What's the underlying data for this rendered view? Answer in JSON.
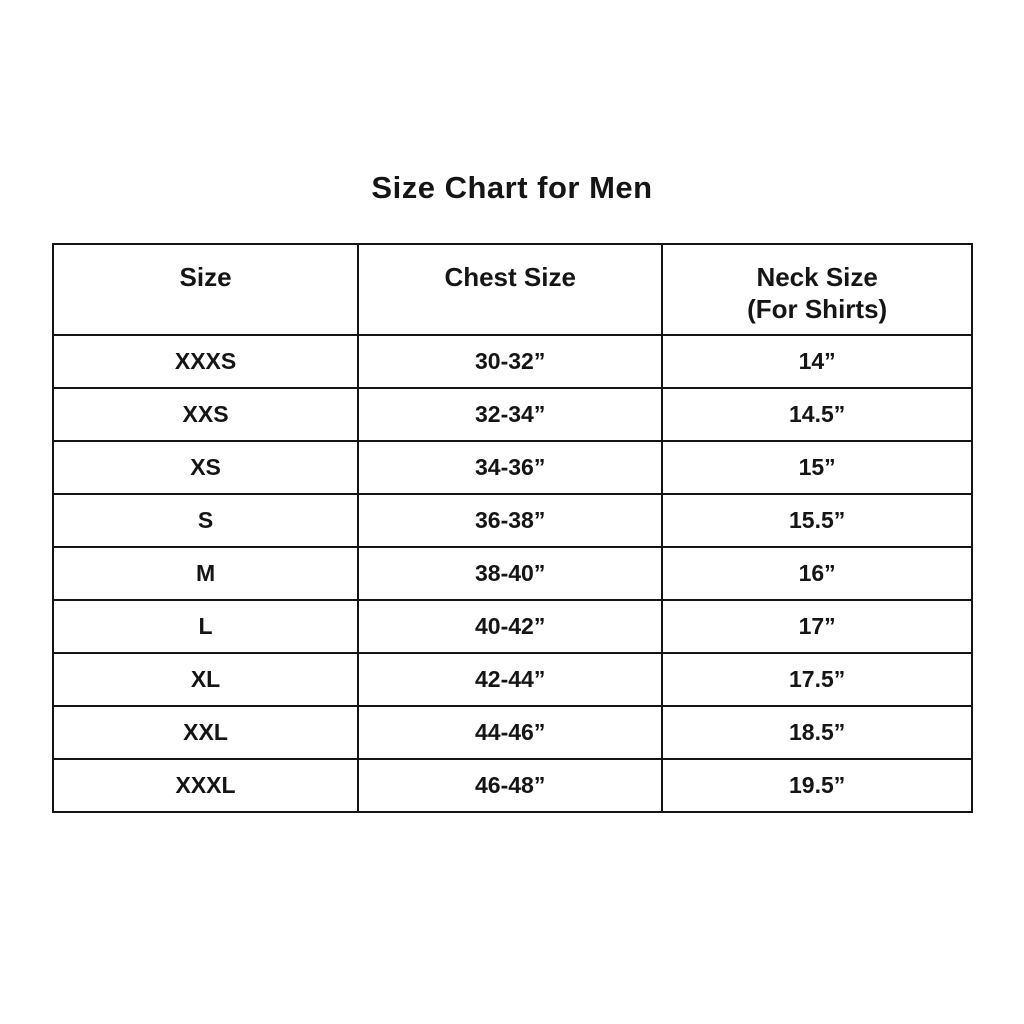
{
  "title": "Size Chart for Men",
  "colors": {
    "background": "#ffffff",
    "text": "#151515",
    "border": "#151515"
  },
  "chart_data": {
    "type": "table",
    "title": "Size Chart for Men",
    "columns": [
      {
        "label": "Size",
        "sublabel": ""
      },
      {
        "label": "Chest Size",
        "sublabel": ""
      },
      {
        "label": "Neck Size",
        "sublabel": "(For Shirts)"
      }
    ],
    "rows": [
      [
        "XXXS",
        "30-32”",
        "14”"
      ],
      [
        "XXS",
        "32-34”",
        "14.5”"
      ],
      [
        "XS",
        "34-36”",
        "15”"
      ],
      [
        "S",
        "36-38”",
        "15.5”"
      ],
      [
        "M",
        "38-40”",
        "16”"
      ],
      [
        "L",
        "40-42”",
        "17”"
      ],
      [
        "XL",
        "42-44”",
        "17.5”"
      ],
      [
        "XXL",
        "44-46”",
        "18.5”"
      ],
      [
        "XXXL",
        "46-48”",
        "19.5”"
      ]
    ]
  }
}
